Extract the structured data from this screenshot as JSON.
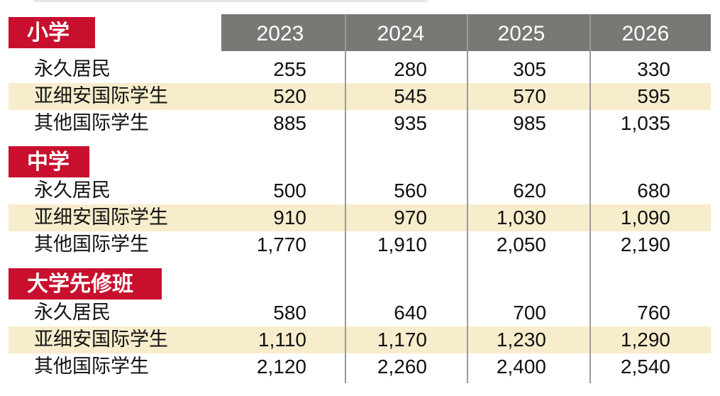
{
  "years": [
    "2023",
    "2024",
    "2025",
    "2026"
  ],
  "sections": [
    {
      "title": "小学",
      "rows": [
        {
          "label": "永久居民",
          "values": [
            "255",
            "280",
            "305",
            "330"
          ]
        },
        {
          "label": "亚细安国际学生",
          "values": [
            "520",
            "545",
            "570",
            "595"
          ]
        },
        {
          "label": "其他国际学生",
          "values": [
            "885",
            "935",
            "985",
            "1,035"
          ]
        }
      ]
    },
    {
      "title": "中学",
      "rows": [
        {
          "label": "永久居民",
          "values": [
            "500",
            "560",
            "620",
            "680"
          ]
        },
        {
          "label": "亚细安国际学生",
          "values": [
            "910",
            "970",
            "1,030",
            "1,090"
          ]
        },
        {
          "label": "其他国际学生",
          "values": [
            "1,770",
            "1,910",
            "2,050",
            "2,190"
          ]
        }
      ]
    },
    {
      "title": "大学先修班",
      "rows": [
        {
          "label": "永久居民",
          "values": [
            "580",
            "640",
            "700",
            "760"
          ]
        },
        {
          "label": "亚细安国际学生",
          "values": [
            "1,110",
            "1,170",
            "1,230",
            "1,290"
          ]
        },
        {
          "label": "其他国际学生",
          "values": [
            "2,120",
            "2,260",
            "2,400",
            "2,540"
          ]
        }
      ]
    }
  ],
  "colors": {
    "section_tag": "#c8102e",
    "header_bar": "#7a7874",
    "highlight_band": "#f7edcc"
  }
}
